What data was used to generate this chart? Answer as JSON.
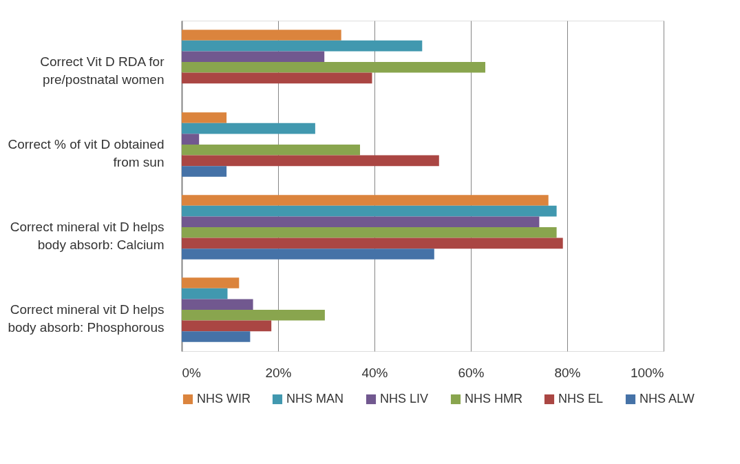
{
  "chart_data": {
    "type": "bar",
    "orientation": "horizontal",
    "categories": [
      "Correct Vit D RDA for pre/postnatal women",
      "Correct % of vit D obtained from sun",
      "Correct mineral vit D helps body absorb: Calcium",
      "Correct mineral vit D helps body absorb: Phosphorous"
    ],
    "series": [
      {
        "name": "NHS WIR",
        "color": "#db843d",
        "values": [
          33.1,
          9.3,
          76.1,
          11.9
        ]
      },
      {
        "name": "NHS MAN",
        "color": "#4198af",
        "values": [
          49.9,
          27.7,
          77.8,
          9.5
        ]
      },
      {
        "name": "NHS LIV",
        "color": "#71588f",
        "values": [
          29.6,
          3.6,
          74.2,
          14.8
        ]
      },
      {
        "name": "NHS HMR",
        "color": "#89a54e",
        "values": [
          63.0,
          37.0,
          77.8,
          29.7
        ]
      },
      {
        "name": "NHS EL",
        "color": "#aa4643",
        "values": [
          39.5,
          53.4,
          79.1,
          18.6
        ]
      },
      {
        "name": "NHS ALW",
        "color": "#4572a7",
        "values": [
          null,
          9.3,
          52.4,
          14.2
        ]
      }
    ],
    "xlim": [
      0,
      100
    ],
    "xticks": [
      {
        "value": 0,
        "label": "0%"
      },
      {
        "value": 20,
        "label": "20%"
      },
      {
        "value": 40,
        "label": "40%"
      },
      {
        "value": 60,
        "label": "60%"
      },
      {
        "value": 80,
        "label": "80%"
      },
      {
        "value": 100,
        "label": "100%"
      }
    ],
    "grid": "x",
    "legend": "bottom"
  }
}
